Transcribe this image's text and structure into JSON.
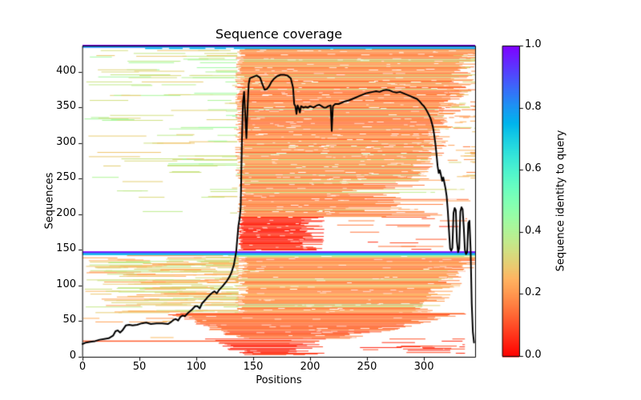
{
  "title": "Sequence coverage",
  "axes": {
    "xlabel": "Positions",
    "ylabel": "Sequences",
    "xticks": [
      0,
      50,
      100,
      150,
      200,
      250,
      300
    ],
    "yticks": [
      0,
      50,
      100,
      150,
      200,
      250,
      300,
      350,
      400
    ],
    "xlim": [
      0,
      345
    ],
    "ylim": [
      0,
      437
    ]
  },
  "colorbar": {
    "label": "Sequence identity to query",
    "tick_labels": [
      "1.0",
      "0.8",
      "0.6",
      "0.4",
      "0.2",
      "0.0"
    ],
    "tick_values": [
      1.0,
      0.8,
      0.6,
      0.4,
      0.2,
      0.0
    ],
    "range": [
      0.0,
      1.0
    ],
    "colormap": "rainbow (identity 1.0 = purple #8000ff, 0.8 = blue #1a96f3, 0.4 = green #b3f396, 0.2 = orange #ff964f, 0.0 = red #ff0000)"
  },
  "chart_data": {
    "type": "heatmap",
    "subtype": "msa-sequence-coverage",
    "title": "Sequence coverage",
    "xlabel": "Positions",
    "ylabel": "Sequences",
    "xlim": [
      0,
      345
    ],
    "ylim": [
      0,
      437
    ],
    "n_sequences": 435,
    "n_positions": 345,
    "grid": false,
    "line_color": "#000000",
    "background": "#ffffff",
    "rng_seed": 42,
    "query_rows": [
      {
        "seq": 437,
        "x": [
          0,
          345
        ],
        "identity": 1.0,
        "h": 2
      },
      {
        "seq": 435,
        "x": [
          0,
          345
        ],
        "identity": 0.82,
        "h": 2
      },
      {
        "seq": 433,
        "x": [
          55,
          345
        ],
        "identity": 0.74,
        "h": 1.5,
        "gaps": [
          [
            70,
            76
          ],
          [
            88,
            94
          ],
          [
            108,
            116
          ],
          [
            126,
            133
          ]
        ]
      },
      {
        "seq": 147,
        "x": [
          0,
          345
        ],
        "identity": 1.0,
        "h": 2
      },
      {
        "seq": 145.2,
        "x": [
          0,
          345
        ],
        "identity": 0.82,
        "h": 2
      },
      {
        "seq": 143.6,
        "x": [
          0,
          345
        ],
        "identity": 0.74,
        "h": 1.5
      },
      {
        "seq": 22,
        "x": [
          0,
          208
        ],
        "identity": 0.12,
        "h": 1.5
      }
    ],
    "row_groups": [
      {
        "name": "top-block-main",
        "seq": [
          250,
          432
        ],
        "layers": [
          {
            "type": "sparse",
            "prob": 0.32,
            "region": [
              0,
              136
            ],
            "nseg": [
              1,
              3
            ],
            "len": [
              15,
              60
            ],
            "identity": [
              0.28,
              0.44
            ]
          },
          {
            "type": "span",
            "start": [
              134,
              143
            ],
            "end": [
              296,
              345
            ],
            "end_grad": true,
            "identity": [
              0.13,
              0.24
            ],
            "highlight_prob": 0.13,
            "highlight_identity": [
              0.28,
              0.42
            ],
            "gap_prob": 0.55,
            "gap_n": [
              1,
              5
            ],
            "gap_len": [
              2,
              9
            ]
          },
          {
            "type": "sparse",
            "prob": 0.3,
            "region": [
              320,
              345
            ],
            "nseg": [
              1,
              2
            ],
            "len": [
              4,
              18
            ],
            "identity": [
              0.15,
              0.35
            ]
          }
        ]
      },
      {
        "name": "top-block-mid",
        "seq": [
          197,
          249
        ],
        "layers": [
          {
            "type": "sparse",
            "prob": 0.12,
            "region": [
              0,
              136
            ],
            "nseg": [
              1,
              2
            ],
            "len": [
              12,
              40
            ],
            "identity": [
              0.28,
              0.4
            ]
          },
          {
            "type": "span",
            "start": [
              136,
              144
            ],
            "end": [
              225,
              345
            ],
            "identity": [
              0.12,
              0.22
            ],
            "highlight_prob": 0.08,
            "highlight_identity": [
              0.28,
              0.38
            ],
            "gap_prob": 0.55,
            "gap_n": [
              1,
              4
            ],
            "gap_len": [
              2,
              8
            ]
          }
        ]
      },
      {
        "name": "top-block-red",
        "seq": [
          150,
          196
        ],
        "layers": [
          {
            "type": "span",
            "start": [
              136,
              142
            ],
            "end": [
              190,
              213
            ],
            "identity": [
              0.02,
              0.09
            ],
            "gap_prob": 0.35,
            "gap_n": [
              1,
              2
            ],
            "gap_len": [
              2,
              5
            ]
          },
          {
            "type": "sparse",
            "prob": 0.3,
            "region": [
              215,
              338
            ],
            "nseg": [
              1,
              2
            ],
            "len": [
              8,
              40
            ],
            "identity": [
              0.05,
              0.18
            ]
          }
        ]
      },
      {
        "name": "bottom-block-main",
        "seq": [
          62,
          142
        ],
        "layers": [
          {
            "type": "sparse",
            "prob": 0.78,
            "region": [
              0,
              137
            ],
            "nseg": [
              2,
              4
            ],
            "len": [
              18,
              70
            ],
            "identity": [
              0.2,
              0.38
            ]
          },
          {
            "type": "span",
            "start": [
              134,
              146
            ],
            "end": [
              298,
              345
            ],
            "end_grad": true,
            "identity": [
              0.14,
              0.26
            ],
            "highlight_prob": 0.1,
            "highlight_identity": [
              0.3,
              0.46
            ],
            "gap_prob": 0.5,
            "gap_n": [
              1,
              4
            ],
            "gap_len": [
              2,
              8
            ]
          }
        ]
      },
      {
        "name": "bottom-block-mid",
        "seq": [
          26,
          61
        ],
        "layers": [
          {
            "type": "sparse",
            "prob": 0.15,
            "region": [
              0,
              80
            ],
            "nseg": [
              1,
              2
            ],
            "len": [
              10,
              40
            ],
            "identity": [
              0.15,
              0.3
            ]
          },
          {
            "type": "span",
            "start": [
              78,
              140
            ],
            "start_grad": "down",
            "end": [
              228,
              330
            ],
            "end_grad": true,
            "identity": [
              0.1,
              0.2
            ],
            "gap_prob": 0.5,
            "gap_n": [
              1,
              3
            ],
            "gap_len": [
              3,
              10
            ]
          }
        ]
      },
      {
        "name": "bottom-block-sparse",
        "seq": [
          3,
          25
        ],
        "layers": [
          {
            "type": "span",
            "prob": 0.85,
            "start": [
              105,
              150
            ],
            "start_grad": "down",
            "end": [
              180,
              215
            ],
            "identity": [
              0.03,
              0.1
            ],
            "gap_prob": 0.4,
            "gap_n": [
              1,
              2
            ],
            "gap_len": [
              3,
              8
            ]
          },
          {
            "type": "sparse",
            "prob": 0.5,
            "region": [
              240,
              336
            ],
            "nseg": [
              1,
              2
            ],
            "len": [
              10,
              45
            ],
            "identity": [
              0.04,
              0.12
            ]
          }
        ]
      }
    ],
    "coverage_line": {
      "name": "coverage (number of sequences per position, black line)",
      "points": [
        [
          0,
          18
        ],
        [
          3,
          20
        ],
        [
          7,
          21
        ],
        [
          11,
          22
        ],
        [
          15,
          24
        ],
        [
          19,
          25
        ],
        [
          23,
          26
        ],
        [
          27,
          30
        ],
        [
          29,
          36
        ],
        [
          31,
          37
        ],
        [
          33,
          34
        ],
        [
          35,
          37
        ],
        [
          38,
          44
        ],
        [
          41,
          45
        ],
        [
          44,
          44
        ],
        [
          48,
          45
        ],
        [
          52,
          47
        ],
        [
          56,
          48
        ],
        [
          60,
          46
        ],
        [
          65,
          47
        ],
        [
          70,
          47
        ],
        [
          75,
          46
        ],
        [
          78,
          49
        ],
        [
          80,
          52
        ],
        [
          82,
          53
        ],
        [
          84,
          51
        ],
        [
          86,
          56
        ],
        [
          88,
          58
        ],
        [
          90,
          57
        ],
        [
          93,
          62
        ],
        [
          96,
          66
        ],
        [
          99,
          71
        ],
        [
          101,
          71
        ],
        [
          103,
          68
        ],
        [
          105,
          75
        ],
        [
          108,
          80
        ],
        [
          110,
          84
        ],
        [
          112,
          87
        ],
        [
          114,
          90
        ],
        [
          116,
          92
        ],
        [
          118,
          89
        ],
        [
          120,
          94
        ],
        [
          123,
          99
        ],
        [
          125,
          103
        ],
        [
          127,
          107
        ],
        [
          129,
          112
        ],
        [
          131,
          119
        ],
        [
          133,
          129
        ],
        [
          135,
          147
        ],
        [
          136,
          166
        ],
        [
          137,
          184
        ],
        [
          138,
          194
        ],
        [
          139,
          210
        ],
        [
          140,
          300
        ],
        [
          141,
          358
        ],
        [
          142,
          372
        ],
        [
          143,
          340
        ],
        [
          144,
          307
        ],
        [
          145,
          347
        ],
        [
          146,
          383
        ],
        [
          147,
          391
        ],
        [
          150,
          393
        ],
        [
          153,
          395
        ],
        [
          156,
          392
        ],
        [
          158,
          383
        ],
        [
          160,
          375
        ],
        [
          162,
          376
        ],
        [
          164,
          380
        ],
        [
          166,
          386
        ],
        [
          168,
          390
        ],
        [
          171,
          394
        ],
        [
          174,
          396
        ],
        [
          177,
          396
        ],
        [
          180,
          395
        ],
        [
          183,
          391
        ],
        [
          185,
          378
        ],
        [
          186,
          355
        ],
        [
          187,
          352
        ],
        [
          188,
          341
        ],
        [
          189,
          353
        ],
        [
          190,
          349
        ],
        [
          191,
          343
        ],
        [
          192,
          352
        ],
        [
          194,
          350
        ],
        [
          196,
          351
        ],
        [
          198,
          350
        ],
        [
          200,
          352
        ],
        [
          203,
          350
        ],
        [
          206,
          353
        ],
        [
          208,
          354
        ],
        [
          210,
          352
        ],
        [
          212,
          350
        ],
        [
          214,
          350
        ],
        [
          216,
          352
        ],
        [
          218,
          353
        ],
        [
          219,
          317
        ],
        [
          220,
          352
        ],
        [
          222,
          355
        ],
        [
          225,
          355
        ],
        [
          228,
          357
        ],
        [
          231,
          359
        ],
        [
          234,
          360
        ],
        [
          237,
          362
        ],
        [
          240,
          364
        ],
        [
          243,
          366
        ],
        [
          246,
          368
        ],
        [
          249,
          370
        ],
        [
          252,
          371
        ],
        [
          255,
          372
        ],
        [
          258,
          373
        ],
        [
          261,
          372
        ],
        [
          264,
          374
        ],
        [
          267,
          375
        ],
        [
          270,
          374
        ],
        [
          273,
          372
        ],
        [
          276,
          371
        ],
        [
          279,
          372
        ],
        [
          282,
          370
        ],
        [
          285,
          368
        ],
        [
          288,
          366
        ],
        [
          291,
          364
        ],
        [
          294,
          362
        ],
        [
          296,
          359
        ],
        [
          298,
          355
        ],
        [
          300,
          352
        ],
        [
          302,
          347
        ],
        [
          304,
          341
        ],
        [
          306,
          334
        ],
        [
          308,
          322
        ],
        [
          309,
          312
        ],
        [
          310,
          300
        ],
        [
          311,
          285
        ],
        [
          312,
          268
        ],
        [
          313,
          258
        ],
        [
          314,
          262
        ],
        [
          315,
          255
        ],
        [
          316,
          247
        ],
        [
          317,
          252
        ],
        [
          318,
          244
        ],
        [
          319,
          236
        ],
        [
          320,
          225
        ],
        [
          321,
          205
        ],
        [
          322,
          178
        ],
        [
          323,
          152
        ],
        [
          324,
          149
        ],
        [
          325,
          153
        ],
        [
          326,
          202
        ],
        [
          327,
          209
        ],
        [
          328,
          206
        ],
        [
          329,
          162
        ],
        [
          330,
          147
        ],
        [
          331,
          152
        ],
        [
          332,
          204
        ],
        [
          333,
          210
        ],
        [
          334,
          207
        ],
        [
          335,
          182
        ],
        [
          336,
          150
        ],
        [
          337,
          144
        ],
        [
          338,
          147
        ],
        [
          339,
          188
        ],
        [
          340,
          191
        ],
        [
          341,
          152
        ],
        [
          342,
          75
        ],
        [
          343,
          35
        ],
        [
          344,
          20
        ]
      ]
    }
  }
}
